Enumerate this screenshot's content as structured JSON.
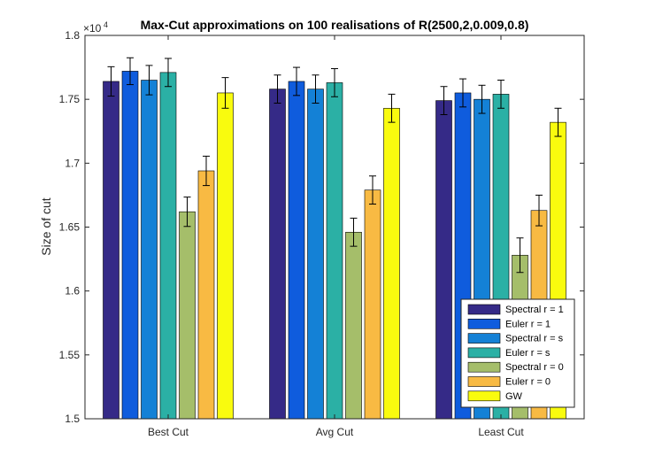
{
  "chart_data": {
    "type": "bar",
    "title": "Max-Cut approximations on 100 realisations of R(2500,2,0.009,0.8)",
    "xlabel": "",
    "ylabel": "Size of cut",
    "y_multiplier": "×10",
    "y_exponent": "4",
    "ylim": [
      1.5,
      1.8
    ],
    "yticks": [
      1.5,
      1.55,
      1.6,
      1.65,
      1.7,
      1.75,
      1.8
    ],
    "ytick_labels": [
      "1.5",
      "1.55",
      "1.6",
      "1.65",
      "1.7",
      "1.75",
      "1.8"
    ],
    "categories": [
      "Best Cut",
      "Avg Cut",
      "Least Cut"
    ],
    "legend_position": "bottom-right",
    "series": [
      {
        "name": "Spectral r = 1",
        "color": "#352a87",
        "values": [
          1.764,
          1.758,
          1.749
        ],
        "errors": [
          0.0115,
          0.011,
          0.011
        ]
      },
      {
        "name": "Euler r = 1",
        "color": "#0f5cdd",
        "values": [
          1.772,
          1.764,
          1.755
        ],
        "errors": [
          0.0105,
          0.011,
          0.011
        ]
      },
      {
        "name": "Spectral r = s",
        "color": "#1481d6",
        "values": [
          1.765,
          1.758,
          1.75
        ],
        "errors": [
          0.0115,
          0.011,
          0.011
        ]
      },
      {
        "name": "Euler r = s",
        "color": "#2bb0a5",
        "values": [
          1.771,
          1.763,
          1.754
        ],
        "errors": [
          0.011,
          0.011,
          0.011
        ]
      },
      {
        "name": "Spectral r = 0",
        "color": "#a5be6a",
        "values": [
          1.662,
          1.646,
          1.628
        ],
        "errors": [
          0.0115,
          0.011,
          0.0135
        ]
      },
      {
        "name": "Euler r = 0",
        "color": "#f8ba43",
        "values": [
          1.694,
          1.679,
          1.663
        ],
        "errors": [
          0.0115,
          0.011,
          0.012
        ]
      },
      {
        "name": "GW",
        "color": "#f9fb0e",
        "values": [
          1.755,
          1.743,
          1.732
        ],
        "errors": [
          0.012,
          0.011,
          0.011
        ]
      }
    ]
  }
}
